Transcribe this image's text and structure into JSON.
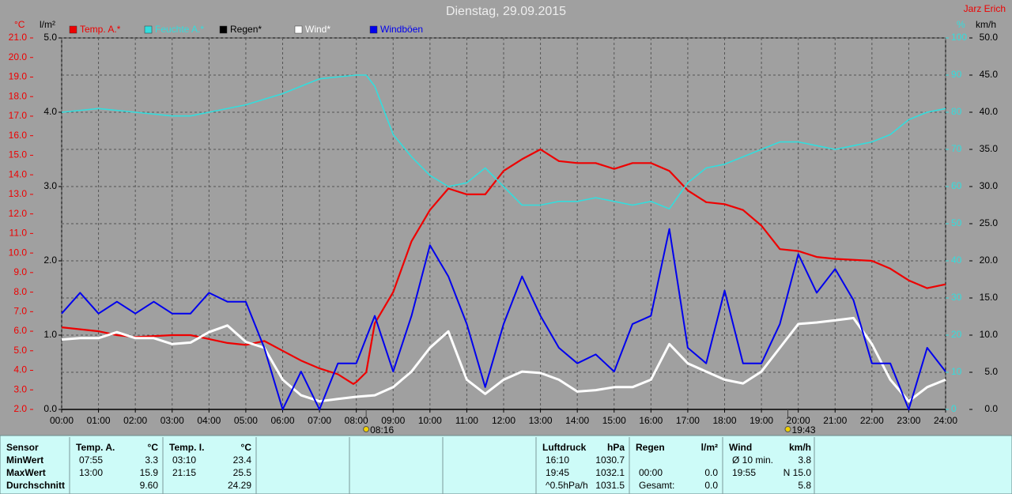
{
  "chart_data": {
    "type": "line",
    "title": "Dienstag, 29.09.2015",
    "author": "Jarz Erich",
    "ylabel": "°C",
    "y2label": "l/m²",
    "y3label": "%",
    "y4label": "km/h",
    "xlim": [
      0,
      24
    ],
    "xticks": [
      {
        "value": 0,
        "label": "00:00"
      },
      {
        "value": 1,
        "label": "01:00"
      },
      {
        "value": 2,
        "label": "02:00"
      },
      {
        "value": 3,
        "label": "03:00"
      },
      {
        "value": 4,
        "label": "04:00"
      },
      {
        "value": 5,
        "label": "05:00"
      },
      {
        "value": 6,
        "label": "06:00"
      },
      {
        "value": 7,
        "label": "07:00"
      },
      {
        "value": 8,
        "label": "08:00"
      },
      {
        "value": 9,
        "label": "09:00"
      },
      {
        "value": 10,
        "label": "10:00"
      },
      {
        "value": 11,
        "label": "11:00"
      },
      {
        "value": 12,
        "label": "12:00"
      },
      {
        "value": 13,
        "label": "13:00"
      },
      {
        "value": 14,
        "label": "14:00"
      },
      {
        "value": 15,
        "label": "15:00"
      },
      {
        "value": 16,
        "label": "16:00"
      },
      {
        "value": 17,
        "label": "17:00"
      },
      {
        "value": 18,
        "label": "18:00"
      },
      {
        "value": 19,
        "label": "19:00"
      },
      {
        "value": 20,
        "label": "20:00"
      },
      {
        "value": 21,
        "label": "21:00"
      },
      {
        "value": 22,
        "label": "22:00"
      },
      {
        "value": 23,
        "label": "23:00"
      },
      {
        "value": 24,
        "label": "24:00"
      }
    ],
    "ylim": [
      2,
      21
    ],
    "yticks": [
      {
        "value": 2,
        "label": "2.0"
      },
      {
        "value": 3,
        "label": "3.0"
      },
      {
        "value": 4,
        "label": "4.0"
      },
      {
        "value": 5,
        "label": "5.0"
      },
      {
        "value": 6,
        "label": "6.0"
      },
      {
        "value": 7,
        "label": "7.0"
      },
      {
        "value": 8,
        "label": "8.0"
      },
      {
        "value": 9,
        "label": "9.0"
      },
      {
        "value": 10,
        "label": "10.0"
      },
      {
        "value": 11,
        "label": "11.0"
      },
      {
        "value": 12,
        "label": "12.0"
      },
      {
        "value": 13,
        "label": "13.0"
      },
      {
        "value": 14,
        "label": "14.0"
      },
      {
        "value": 15,
        "label": "15.0"
      },
      {
        "value": 16,
        "label": "16.0"
      },
      {
        "value": 17,
        "label": "17.0"
      },
      {
        "value": 18,
        "label": "18.0"
      },
      {
        "value": 19,
        "label": "19.0"
      },
      {
        "value": 20,
        "label": "20.0"
      },
      {
        "value": 21,
        "label": "21.0"
      }
    ],
    "y2lim": [
      0,
      5
    ],
    "y2ticks": [
      {
        "value": 0,
        "label": "0.0"
      },
      {
        "value": 1,
        "label": "1.0"
      },
      {
        "value": 2,
        "label": "2.0"
      },
      {
        "value": 3,
        "label": "3.0"
      },
      {
        "value": 4,
        "label": "4.0"
      },
      {
        "value": 5,
        "label": "5.0"
      }
    ],
    "y3lim": [
      0,
      100
    ],
    "y3ticks": [
      0,
      10,
      20,
      30,
      40,
      50,
      60,
      70,
      80,
      90,
      100
    ],
    "y4lim": [
      0,
      50
    ],
    "y4ticks": [
      {
        "value": 0,
        "label": "0.0"
      },
      {
        "value": 5,
        "label": "5.0"
      },
      {
        "value": 10,
        "label": "10.0"
      },
      {
        "value": 15,
        "label": "15.0"
      },
      {
        "value": 20,
        "label": "20.0"
      },
      {
        "value": 25,
        "label": "25.0"
      },
      {
        "value": 30,
        "label": "30.0"
      },
      {
        "value": 35,
        "label": "35.0"
      },
      {
        "value": 40,
        "label": "40.0"
      },
      {
        "value": 45,
        "label": "45.0"
      },
      {
        "value": 50,
        "label": "50.0"
      }
    ],
    "grid": true,
    "sunrise": {
      "value": 8.267,
      "label": "08:16"
    },
    "sunset": {
      "value": 19.717,
      "label": "19:43"
    },
    "series": [
      {
        "name": "Temp. A.*",
        "color": "#ee0000",
        "axis": "y",
        "x": [
          0,
          1,
          1.5,
          2,
          3,
          3.5,
          4,
          4.5,
          5,
          5.5,
          6,
          6.5,
          7,
          7.5,
          7.92,
          8,
          8.27,
          8.5,
          9,
          9.5,
          10,
          10.5,
          11,
          11.5,
          12,
          12.5,
          13,
          13.5,
          14,
          14.5,
          15,
          15.5,
          16,
          16.5,
          17,
          17.5,
          18,
          18.5,
          19,
          19.5,
          20,
          20.5,
          21,
          22,
          22.5,
          23,
          23.5,
          24
        ],
        "values": [
          6.2,
          6.0,
          5.8,
          5.7,
          5.8,
          5.8,
          5.6,
          5.4,
          5.3,
          5.5,
          5.0,
          4.5,
          4.1,
          3.8,
          3.3,
          3.4,
          3.9,
          6.4,
          8.0,
          10.6,
          12.2,
          13.3,
          13.0,
          13.0,
          14.2,
          14.8,
          15.3,
          14.7,
          14.6,
          14.6,
          14.3,
          14.6,
          14.6,
          14.2,
          13.2,
          12.6,
          12.5,
          12.2,
          11.4,
          10.2,
          10.1,
          9.8,
          9.7,
          9.6,
          9.2,
          8.6,
          8.2,
          8.4
        ]
      },
      {
        "name": "Feuchte A.*",
        "color": "#33dddd",
        "axis": "y3",
        "x": [
          0,
          1,
          2,
          3,
          3.5,
          4,
          5,
          6,
          7,
          8,
          8.27,
          8.5,
          9,
          9.5,
          10,
          10.5,
          11,
          11.5,
          12,
          12.5,
          13,
          13.5,
          14,
          14.5,
          15,
          15.5,
          16,
          16.5,
          17,
          17.5,
          18,
          18.5,
          19,
          19.5,
          20,
          20.5,
          21,
          21.5,
          22,
          22.5,
          23,
          23.5,
          24
        ],
        "values": [
          80,
          81,
          80,
          79,
          79,
          80,
          82,
          85,
          89,
          90,
          90,
          87,
          74,
          68,
          63,
          60,
          61,
          65,
          60,
          55,
          55,
          56,
          56,
          57,
          56,
          55,
          56,
          54,
          61,
          65,
          66,
          68,
          70,
          72,
          72,
          71,
          70,
          71,
          72,
          74,
          78,
          80,
          81
        ]
      },
      {
        "name": "Regen*",
        "color": "#000000",
        "axis": "y2",
        "x": [
          0,
          24
        ],
        "values": [
          0,
          0
        ]
      },
      {
        "name": "Wind*",
        "color": "#ffffff",
        "axis": "y4",
        "x": [
          0,
          0.5,
          1,
          1.5,
          2,
          2.5,
          3,
          3.5,
          4,
          4.5,
          5,
          5.5,
          6,
          6.5,
          7,
          7.5,
          8,
          8.5,
          9,
          9.5,
          10,
          10.5,
          11,
          11.5,
          12,
          12.5,
          13,
          13.5,
          14,
          14.5,
          15,
          15.5,
          16,
          16.5,
          17,
          17.5,
          18,
          18.5,
          19,
          19.5,
          20,
          20.5,
          21,
          21.5,
          22,
          22.5,
          23,
          23.5,
          24
        ],
        "values": [
          9.4,
          9.6,
          9.6,
          10.4,
          9.6,
          9.6,
          8.8,
          9.0,
          10.4,
          11.3,
          9.1,
          8.3,
          4.0,
          1.9,
          1.1,
          1.4,
          1.7,
          1.9,
          3.0,
          5.1,
          8.3,
          10.5,
          4.0,
          2.1,
          4.0,
          5.1,
          4.9,
          4.0,
          2.4,
          2.6,
          3.0,
          3.0,
          4.0,
          8.8,
          6.2,
          5.1,
          4.0,
          3.5,
          5.1,
          8.3,
          11.5,
          11.7,
          12.0,
          12.3,
          8.8,
          4.0,
          1.1,
          3.0,
          4.0
        ]
      },
      {
        "name": "Windböen",
        "color": "#0000ee",
        "axis": "y4",
        "x": [
          0,
          0.5,
          1,
          1.5,
          2,
          2.5,
          3,
          3.5,
          4,
          4.5,
          5,
          5.5,
          6,
          6.5,
          7,
          7.5,
          8,
          8.5,
          9,
          9.5,
          10,
          10.5,
          11,
          11.5,
          12,
          12.5,
          13,
          13.5,
          14,
          14.5,
          15,
          15.5,
          16,
          16.5,
          17,
          17.5,
          18,
          18.5,
          19,
          19.5,
          20,
          20.5,
          21,
          21.5,
          22,
          22.5,
          23,
          23.5,
          24
        ],
        "values": [
          12.9,
          15.7,
          12.9,
          14.5,
          12.9,
          14.5,
          12.9,
          12.9,
          15.7,
          14.5,
          14.5,
          8.3,
          0,
          5.1,
          0,
          6.2,
          6.2,
          12.6,
          5.1,
          12.6,
          22.1,
          17.9,
          11.5,
          3.0,
          11.5,
          17.9,
          12.6,
          8.3,
          6.2,
          7.4,
          5.1,
          11.5,
          12.6,
          24.3,
          8.3,
          6.2,
          16.0,
          6.2,
          6.2,
          11.5,
          20.9,
          15.7,
          18.9,
          14.7,
          6.2,
          6.2,
          0,
          8.3,
          5.1
        ]
      }
    ]
  },
  "stats_table": {
    "row_labels": [
      "Sensor",
      "MinWert",
      "MaxWert",
      "Durchschnitt"
    ],
    "groups": [
      {
        "header": [
          "Temp. A.",
          "°C"
        ],
        "rows": [
          [
            "07:55",
            "3.3"
          ],
          [
            "13:00",
            "15.9"
          ],
          [
            null,
            "9.60"
          ]
        ]
      },
      {
        "header": [
          "Temp. I.",
          "°C"
        ],
        "rows": [
          [
            "03:10",
            "23.4"
          ],
          [
            "21:15",
            "25.5"
          ],
          [
            null,
            "24.29"
          ]
        ]
      },
      {
        "header": [
          "Luftdruck",
          "hPa"
        ],
        "rows": [
          [
            "16:10",
            "1030.7"
          ],
          [
            "19:45",
            "1032.1"
          ],
          [
            "^0.5hPa/h",
            "1031.5"
          ]
        ]
      },
      {
        "header": [
          "Regen",
          "l/m²"
        ],
        "rows": [
          [
            null,
            null
          ],
          [
            "00:00",
            "0.0"
          ],
          [
            "Gesamt:",
            "0.0"
          ]
        ]
      },
      {
        "header": [
          "Wind",
          "km/h"
        ],
        "rows": [
          [
            "Ø 10 min.",
            "3.8"
          ],
          [
            "19:55",
            "N 15.0"
          ],
          [
            null,
            "5.8"
          ]
        ]
      }
    ]
  }
}
